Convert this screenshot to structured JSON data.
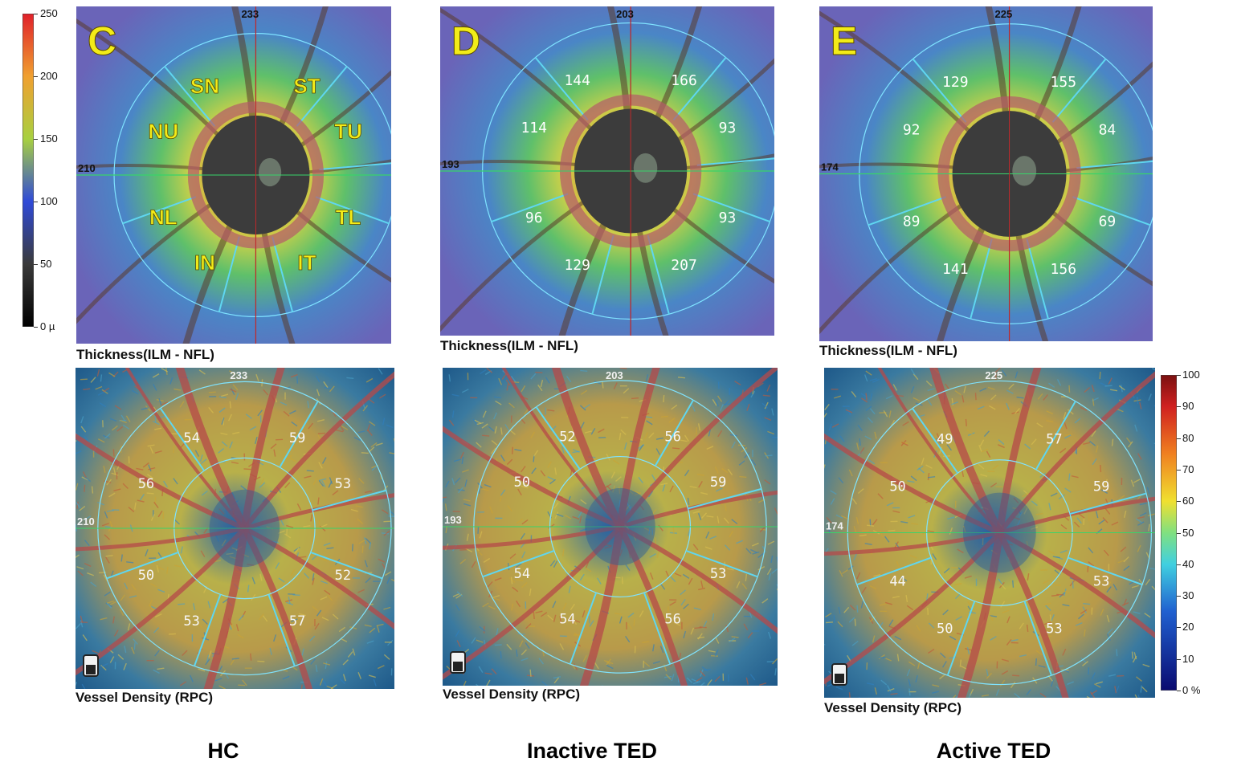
{
  "thickness_scale": {
    "ticks": [
      "250",
      "200",
      "150",
      "100",
      "50",
      "0 µ"
    ]
  },
  "density_scale": {
    "ticks": [
      "100",
      "90",
      "80",
      "70",
      "60",
      "50",
      "40",
      "30",
      "20",
      "10",
      "0 %"
    ]
  },
  "panels": [
    {
      "group_label": "HC",
      "thickness": {
        "letter": "C",
        "caption": "Thickness(ILM - NFL)",
        "edge_top": "233",
        "edge_left": "210",
        "sector_labels": [
          "SN",
          "ST",
          "NU",
          "TU",
          "NL",
          "TL",
          "IN",
          "IT"
        ]
      },
      "density": {
        "caption": "Vessel Density (RPC)",
        "edge_top": "233",
        "edge_left": "210",
        "values": [
          "54",
          "59",
          "56",
          "53",
          "50",
          "52",
          "53",
          "57"
        ]
      }
    },
    {
      "group_label": "Inactive TED",
      "thickness": {
        "letter": "D",
        "caption": "Thickness(ILM - NFL)",
        "edge_top": "203",
        "edge_left": "193",
        "values": [
          "144",
          "166",
          "114",
          "93",
          "96",
          "93",
          "129",
          "207"
        ]
      },
      "density": {
        "caption": "Vessel Density (RPC)",
        "edge_top": "203",
        "edge_left": "193",
        "values": [
          "52",
          "56",
          "50",
          "59",
          "54",
          "53",
          "54",
          "56"
        ]
      }
    },
    {
      "group_label": "Active TED",
      "thickness": {
        "letter": "E",
        "caption": "Thickness(ILM - NFL)",
        "edge_top": "225",
        "edge_left": "174",
        "values": [
          "129",
          "155",
          "92",
          "84",
          "89",
          "69",
          "141",
          "156"
        ]
      },
      "density": {
        "caption": "Vessel Density (RPC)",
        "edge_top": "225",
        "edge_left": "174",
        "values": [
          "49",
          "57",
          "50",
          "59",
          "44",
          "53",
          "50",
          "53"
        ]
      }
    }
  ]
}
